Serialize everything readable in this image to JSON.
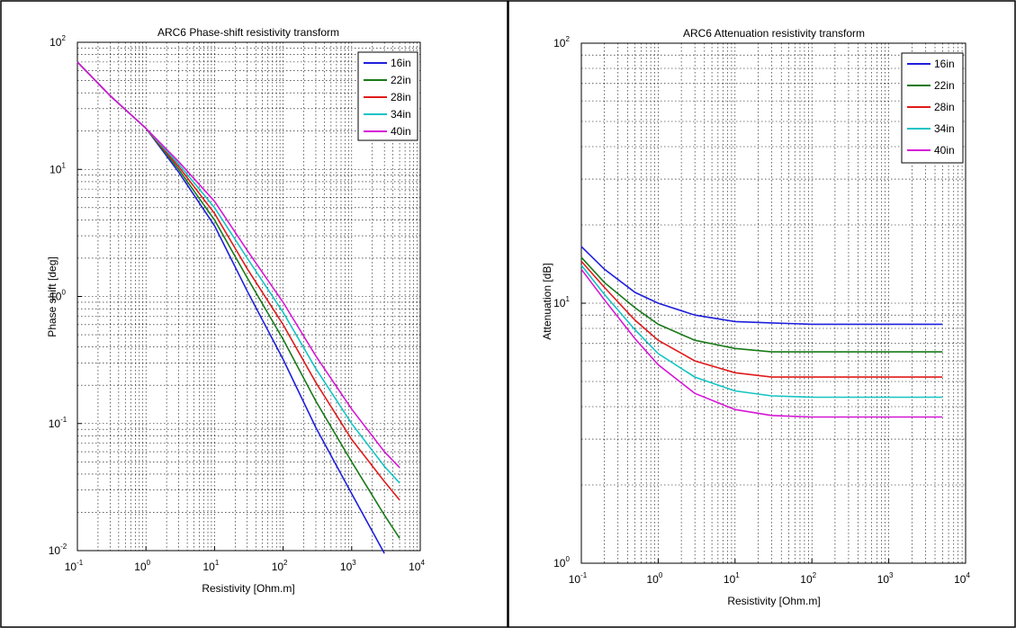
{
  "chart_data": [
    {
      "type": "line",
      "title": "ARC6 Phase-shift resistivity transform",
      "xlabel": "Resistivity [Ohm.m]",
      "ylabel": "Phase shift [deg]",
      "xscale": "log",
      "yscale": "log",
      "xlim": [
        0.1,
        10000
      ],
      "ylim": [
        0.01,
        100
      ],
      "x_tick_labels": [
        {
          "base": "10",
          "exp": "-1"
        },
        {
          "base": "10",
          "exp": "0"
        },
        {
          "base": "10",
          "exp": "1"
        },
        {
          "base": "10",
          "exp": "2"
        },
        {
          "base": "10",
          "exp": "3"
        },
        {
          "base": "10",
          "exp": "4"
        }
      ],
      "y_tick_labels": [
        {
          "base": "10",
          "exp": "-2"
        },
        {
          "base": "10",
          "exp": "-1"
        },
        {
          "base": "10",
          "exp": "0"
        },
        {
          "base": "10",
          "exp": "1"
        },
        {
          "base": "10",
          "exp": "2"
        }
      ],
      "grid": true,
      "legend": "top-right",
      "series": [
        {
          "name": "16in",
          "color": "#1f1fdc",
          "x": [
            0.1,
            0.3,
            1,
            3,
            10,
            30,
            100,
            300,
            1000,
            3000
          ],
          "y": [
            70,
            38,
            21,
            9.5,
            3.6,
            1.1,
            0.32,
            0.093,
            0.028,
            0.0095
          ]
        },
        {
          "name": "22in",
          "color": "#187a18",
          "x": [
            0.1,
            0.3,
            1,
            3,
            10,
            30,
            100,
            300,
            1000,
            3000,
            5000
          ],
          "y": [
            70,
            38,
            21,
            10,
            4.0,
            1.4,
            0.46,
            0.15,
            0.05,
            0.019,
            0.0125
          ]
        },
        {
          "name": "28in",
          "color": "#e01b1b",
          "x": [
            0.1,
            0.3,
            1,
            3,
            10,
            30,
            100,
            300,
            1000,
            3000,
            5000
          ],
          "y": [
            70,
            38,
            21,
            10.5,
            4.5,
            1.65,
            0.6,
            0.21,
            0.075,
            0.035,
            0.025
          ]
        },
        {
          "name": "34in",
          "color": "#14c3c3",
          "x": [
            0.1,
            0.3,
            1,
            3,
            10,
            30,
            100,
            300,
            1000,
            3000,
            5000
          ],
          "y": [
            70,
            38,
            21,
            11,
            5.0,
            2.0,
            0.75,
            0.27,
            0.1,
            0.046,
            0.034
          ]
        },
        {
          "name": "40in",
          "color": "#d616d6",
          "x": [
            0.1,
            0.3,
            1,
            3,
            10,
            30,
            100,
            300,
            1000,
            3000,
            5000
          ],
          "y": [
            70,
            38,
            21,
            11.5,
            5.6,
            2.3,
            0.9,
            0.34,
            0.13,
            0.06,
            0.045
          ]
        }
      ]
    },
    {
      "type": "line",
      "title": "ARC6 Attenuation resistivity transform",
      "xlabel": "Resistivity [Ohm.m]",
      "ylabel": "Attenuation [dB]",
      "xscale": "log",
      "yscale": "log",
      "xlim": [
        0.1,
        10000
      ],
      "ylim": [
        1,
        100
      ],
      "x_tick_labels": [
        {
          "base": "10",
          "exp": "-1"
        },
        {
          "base": "10",
          "exp": "0"
        },
        {
          "base": "10",
          "exp": "1"
        },
        {
          "base": "10",
          "exp": "2"
        },
        {
          "base": "10",
          "exp": "3"
        },
        {
          "base": "10",
          "exp": "4"
        }
      ],
      "y_tick_labels": [
        {
          "base": "10",
          "exp": "0"
        },
        {
          "base": "10",
          "exp": "1"
        },
        {
          "base": "10",
          "exp": "2"
        }
      ],
      "grid": true,
      "legend": "top-right",
      "series": [
        {
          "name": "16in",
          "color": "#1f1fdc",
          "x": [
            0.1,
            0.2,
            0.5,
            1,
            3,
            10,
            30,
            100,
            1000,
            5000
          ],
          "y": [
            16.5,
            13.5,
            11.0,
            10.0,
            9.0,
            8.5,
            8.4,
            8.3,
            8.3,
            8.3
          ]
        },
        {
          "name": "22in",
          "color": "#187a18",
          "x": [
            0.1,
            0.2,
            0.5,
            1,
            3,
            10,
            30,
            100,
            1000,
            5000
          ],
          "y": [
            15.0,
            12.0,
            9.6,
            8.3,
            7.2,
            6.7,
            6.5,
            6.5,
            6.5,
            6.5
          ]
        },
        {
          "name": "28in",
          "color": "#e01b1b",
          "x": [
            0.1,
            0.2,
            0.5,
            1,
            3,
            10,
            30,
            100,
            1000,
            5000
          ],
          "y": [
            14.5,
            11.5,
            8.6,
            7.2,
            6.0,
            5.4,
            5.2,
            5.2,
            5.2,
            5.2
          ]
        },
        {
          "name": "34in",
          "color": "#14c3c3",
          "x": [
            0.1,
            0.2,
            0.5,
            1,
            3,
            10,
            30,
            100,
            1000,
            5000
          ],
          "y": [
            14.0,
            10.8,
            7.9,
            6.4,
            5.2,
            4.6,
            4.4,
            4.35,
            4.35,
            4.35
          ]
        },
        {
          "name": "40in",
          "color": "#d616d6",
          "x": [
            0.1,
            0.2,
            0.5,
            1,
            3,
            10,
            30,
            100,
            1000,
            5000
          ],
          "y": [
            13.5,
            10.3,
            7.3,
            5.8,
            4.5,
            3.9,
            3.7,
            3.65,
            3.65,
            3.65
          ]
        }
      ]
    }
  ]
}
